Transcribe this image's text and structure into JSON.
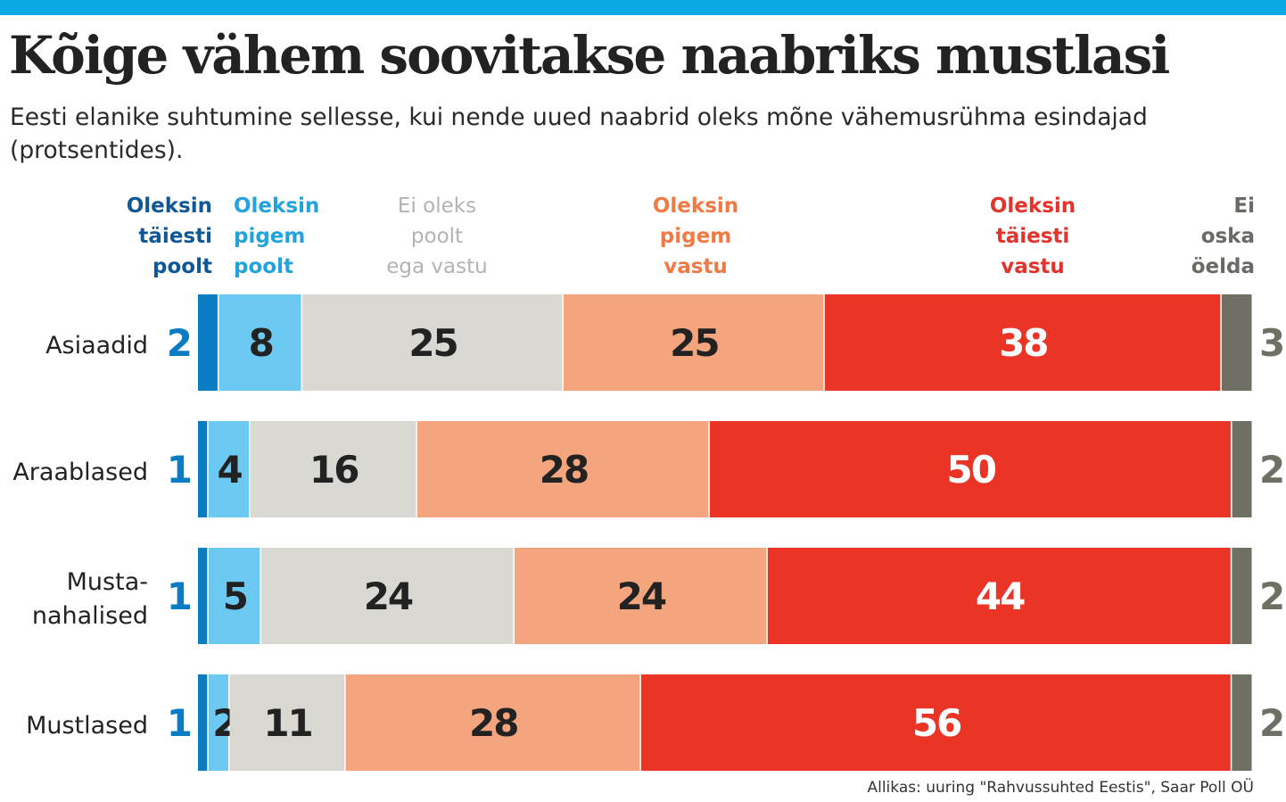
{
  "title": "Kõige vähem soovitakse naabriks mustlasi",
  "subtitle": "Eesti elanike suhtumine sellesse, kui nende uued naabrid oleks mõne vähemusrühma esindajad (protsentides).",
  "source": "Allikas: uuring \"Rahvussuhted Eestis\", Saar Poll OÜ",
  "colors": {
    "topbar": "#0aa9e6",
    "series": [
      "#0a7cc4",
      "#6ccaf2",
      "#d9d8d2",
      "#f4a57e",
      "#ea3426",
      "#6f6f64"
    ],
    "legend_text": [
      "#0f5797",
      "#22a3dc",
      "#b3b3b3",
      "#ef7a45",
      "#e5322a",
      "#6a6a64"
    ],
    "value_text_dark": "#222222",
    "value_text_light": "#ffffff"
  },
  "chart_data": {
    "type": "bar",
    "orientation": "horizontal",
    "stacked": true,
    "unit": "%",
    "categories": [
      "Asiaadid",
      "Araablased",
      "Musta-nahalised",
      "Mustlased"
    ],
    "category_label_lines": [
      [
        "Asiaadid"
      ],
      [
        "Araablased"
      ],
      [
        "Musta-",
        "nahalised"
      ],
      [
        "Mustlased"
      ]
    ],
    "series": [
      {
        "name": "Oleksin täiesti poolt",
        "legend_lines": [
          "Oleksin",
          "täiesti",
          "poolt"
        ],
        "values": [
          2,
          1,
          1,
          1
        ]
      },
      {
        "name": "Oleksin pigem poolt",
        "legend_lines": [
          "Oleksin",
          "pigem",
          "poolt"
        ],
        "values": [
          8,
          4,
          5,
          2
        ]
      },
      {
        "name": "Ei oleks poolt ega vastu",
        "legend_lines": [
          "Ei oleks",
          "poolt",
          "ega vastu"
        ],
        "values": [
          25,
          16,
          24,
          11
        ]
      },
      {
        "name": "Oleksin pigem vastu",
        "legend_lines": [
          "Oleksin",
          "pigem",
          "vastu"
        ],
        "values": [
          25,
          28,
          24,
          28
        ]
      },
      {
        "name": "Oleksin täiesti vastu",
        "legend_lines": [
          "Oleksin",
          "täiesti",
          "vastu"
        ],
        "values": [
          38,
          50,
          44,
          56
        ]
      },
      {
        "name": "Ei oska öelda",
        "legend_lines": [
          "Ei",
          "oska",
          "öelda"
        ],
        "values": [
          3,
          2,
          2,
          2
        ]
      }
    ]
  }
}
